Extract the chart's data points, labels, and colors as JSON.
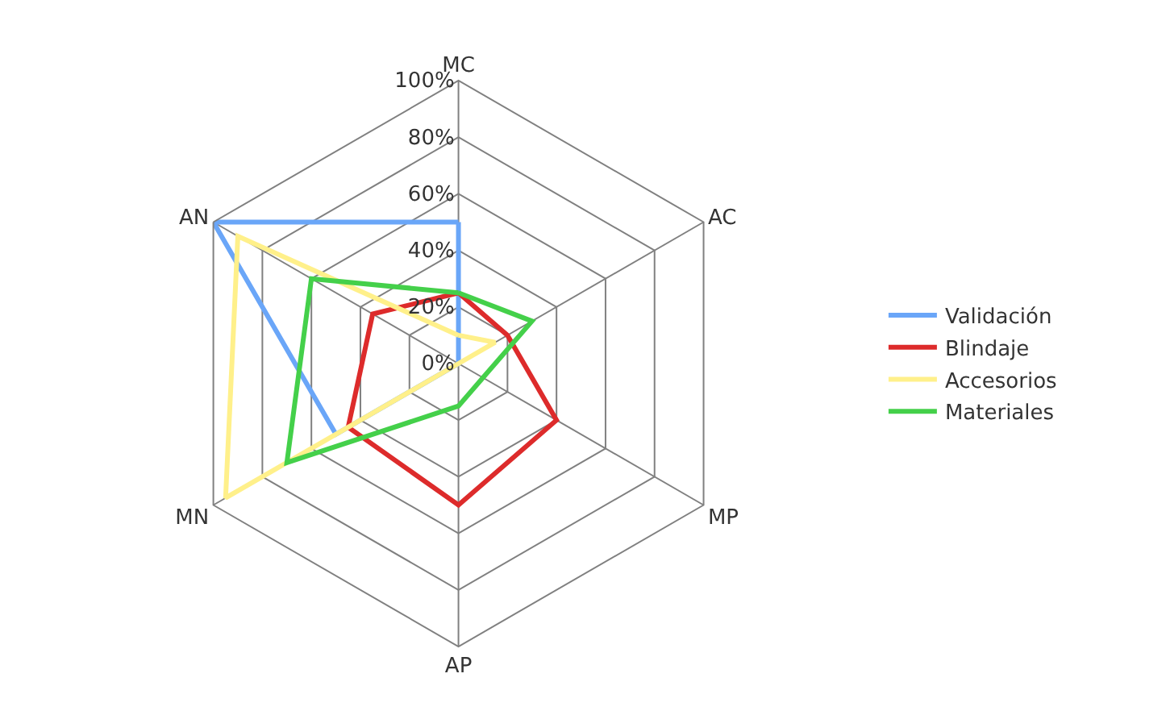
{
  "chart_data": {
    "type": "radar",
    "categories": [
      "MC",
      "AC",
      "MP",
      "AP",
      "MN",
      "AN"
    ],
    "series": [
      {
        "name": "Validación",
        "color": "#6aa6f8",
        "values": [
          50,
          0,
          0,
          0,
          50,
          100
        ]
      },
      {
        "name": "Blindaje",
        "color": "#dd2b2b",
        "values": [
          25,
          20,
          40,
          50,
          45,
          35
        ]
      },
      {
        "name": "Accesorios",
        "color": "#fff08a",
        "values": [
          10,
          15,
          0,
          0,
          95,
          90
        ]
      },
      {
        "name": "Materiales",
        "color": "#44d04a",
        "values": [
          25,
          30,
          10,
          15,
          70,
          60
        ]
      }
    ],
    "ylim": [
      0,
      100
    ],
    "yticks": [
      {
        "value": 0,
        "label": "0%"
      },
      {
        "value": 20,
        "label": "20%"
      },
      {
        "value": 40,
        "label": "40%"
      },
      {
        "value": 60,
        "label": "60%"
      },
      {
        "value": 80,
        "label": "80%"
      },
      {
        "value": 100,
        "label": "100%"
      }
    ],
    "legend": "right",
    "marker": "none",
    "line_style": "solid"
  }
}
